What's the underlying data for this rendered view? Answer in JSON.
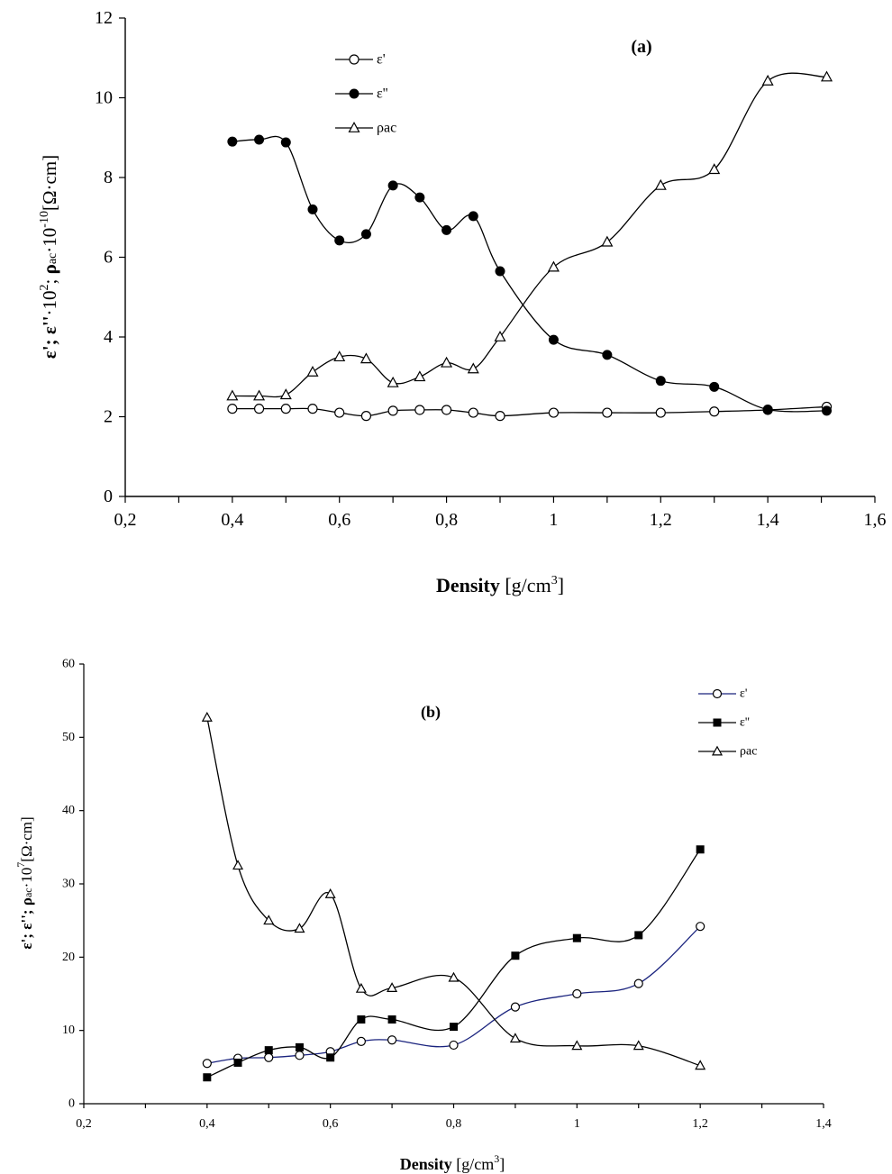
{
  "chart_data": [
    {
      "type": "line",
      "panel_label": "(a)",
      "xlabel_bold": "Density",
      "xlabel_unit_pre": " [g/cm",
      "xlabel_unit_sup": "3",
      "xlabel_unit_post": "]",
      "ylabel": {
        "p1": "ε'; ε''",
        "p2": "·10",
        "p3": "2",
        "p4": "; ",
        "p5": "ρ",
        "p6": "ac",
        "p7": "·10",
        "p8": "-10",
        "p9": "[Ω·cm]"
      },
      "xlim": [
        0.2,
        1.6
      ],
      "ylim": [
        0,
        12
      ],
      "x_ticks": [
        "0,2",
        "0,4",
        "0,6",
        "0,8",
        "1",
        "1,2",
        "1,4",
        "1,6"
      ],
      "y_ticks": [
        "0",
        "2",
        "4",
        "6",
        "8",
        "10",
        "12"
      ],
      "legend_position": "top-left",
      "series": [
        {
          "name": "ε'",
          "marker": "circle-open",
          "color": "#000000",
          "x": [
            0.4,
            0.45,
            0.5,
            0.55,
            0.6,
            0.65,
            0.7,
            0.75,
            0.8,
            0.85,
            0.9,
            1.0,
            1.1,
            1.2,
            1.3,
            1.4,
            1.51
          ],
          "y": [
            2.2,
            2.2,
            2.2,
            2.2,
            2.1,
            2.02,
            2.15,
            2.17,
            2.17,
            2.1,
            2.02,
            2.1,
            2.1,
            2.1,
            2.13,
            2.17,
            2.25
          ]
        },
        {
          "name": "ε''",
          "marker": "circle-filled",
          "color": "#000000",
          "x": [
            0.4,
            0.45,
            0.5,
            0.55,
            0.6,
            0.65,
            0.7,
            0.75,
            0.8,
            0.85,
            0.9,
            1.0,
            1.1,
            1.2,
            1.3,
            1.4,
            1.51
          ],
          "y": [
            8.9,
            8.95,
            8.88,
            7.2,
            6.42,
            6.58,
            7.8,
            7.5,
            6.68,
            7.03,
            5.65,
            3.93,
            3.55,
            2.9,
            2.75,
            2.18,
            2.15
          ]
        },
        {
          "name": "ρac",
          "marker": "triangle-open",
          "color": "#000000",
          "x": [
            0.4,
            0.45,
            0.5,
            0.55,
            0.6,
            0.65,
            0.7,
            0.75,
            0.8,
            0.85,
            0.9,
            1.0,
            1.1,
            1.2,
            1.3,
            1.4,
            1.51
          ],
          "y": [
            2.52,
            2.52,
            2.55,
            3.12,
            3.5,
            3.45,
            2.85,
            3.0,
            3.35,
            3.2,
            4.0,
            5.75,
            6.38,
            7.8,
            8.2,
            10.42,
            10.52
          ]
        }
      ]
    },
    {
      "type": "line",
      "panel_label": "(b)",
      "xlabel_bold": "Density",
      "xlabel_unit_pre": " [g/cm",
      "xlabel_unit_sup": "3",
      "xlabel_unit_post": "]",
      "ylabel": {
        "p1": "ε'; ε''; ",
        "p2": "ρ",
        "p3": "ac",
        "p4": "·10",
        "p5": "7",
        "p6": "[Ω·cm]"
      },
      "xlim": [
        0.2,
        1.4
      ],
      "ylim": [
        0,
        60
      ],
      "x_ticks": [
        "0,2",
        "0,4",
        "0,6",
        "0,8",
        "1",
        "1,2",
        "1,4"
      ],
      "y_ticks": [
        "0",
        "10",
        "20",
        "30",
        "40",
        "50",
        "60"
      ],
      "legend_position": "top-right",
      "series": [
        {
          "name": "ε'",
          "marker": "circle-open",
          "color": "#1a237e",
          "x": [
            0.4,
            0.45,
            0.5,
            0.55,
            0.6,
            0.65,
            0.7,
            0.8,
            0.9,
            1.0,
            1.1,
            1.2
          ],
          "y": [
            5.5,
            6.2,
            6.3,
            6.6,
            7.1,
            8.5,
            8.7,
            8.0,
            13.2,
            15.0,
            16.4,
            24.2
          ]
        },
        {
          "name": "ε''",
          "marker": "square-filled",
          "color": "#000000",
          "x": [
            0.4,
            0.45,
            0.5,
            0.55,
            0.6,
            0.65,
            0.7,
            0.8,
            0.9,
            1.0,
            1.1,
            1.2
          ],
          "y": [
            3.6,
            5.6,
            7.3,
            7.7,
            6.3,
            11.5,
            11.5,
            10.5,
            20.2,
            22.6,
            23.0,
            34.7
          ]
        },
        {
          "name": "ρac",
          "marker": "triangle-open",
          "color": "#000000",
          "x": [
            0.4,
            0.45,
            0.5,
            0.55,
            0.6,
            0.65,
            0.7,
            0.8,
            0.9,
            1.0,
            1.1,
            1.2
          ],
          "y": [
            52.7,
            32.5,
            25.0,
            23.9,
            28.6,
            15.7,
            15.8,
            17.2,
            8.9,
            7.9,
            7.9,
            5.2
          ]
        }
      ]
    }
  ]
}
